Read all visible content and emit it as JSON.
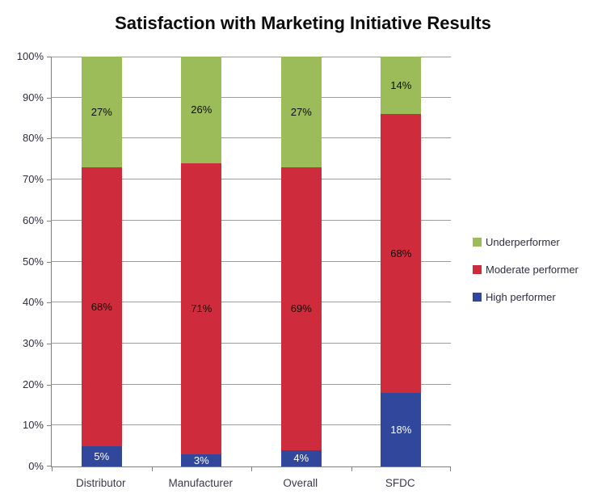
{
  "title": "Satisfaction with Marketing Initiative Results",
  "colors": {
    "underperformer": "#9bbc59",
    "moderate": "#ce2c3c",
    "high": "#31479b",
    "gridline": "#9d9d9d",
    "axis": "#7f7f7f",
    "tick_text": "#2e2e40",
    "title_text": "#0d0d0d"
  },
  "chart_data": {
    "type": "bar",
    "stacked": true,
    "title": "Satisfaction with Marketing Initiative Results",
    "categories": [
      "Distributor",
      "Manufacturer",
      "Overall",
      "SFDC"
    ],
    "series": [
      {
        "name": "High performer",
        "color_key": "high",
        "values": [
          5,
          3,
          4,
          18
        ],
        "label_color": "#ffffff"
      },
      {
        "name": "Moderate performer",
        "color_key": "moderate",
        "values": [
          68,
          71,
          69,
          68
        ],
        "label_color": "#0d0d0d"
      },
      {
        "name": "Underperformer",
        "color_key": "underperformer",
        "values": [
          27,
          26,
          27,
          14
        ],
        "label_color": "#0d0d0d"
      }
    ],
    "value_suffix": "%",
    "ylim": [
      0,
      100
    ],
    "ytick_step": 10,
    "ytick_labels": [
      "0%",
      "10%",
      "20%",
      "30%",
      "40%",
      "50%",
      "60%",
      "70%",
      "80%",
      "90%",
      "100%"
    ],
    "grid": true,
    "legend_position": "right",
    "legend": [
      {
        "label": "Underperformer",
        "color_key": "underperformer"
      },
      {
        "label": "Moderate performer",
        "color_key": "moderate"
      },
      {
        "label": "High performer",
        "color_key": "high"
      }
    ]
  }
}
